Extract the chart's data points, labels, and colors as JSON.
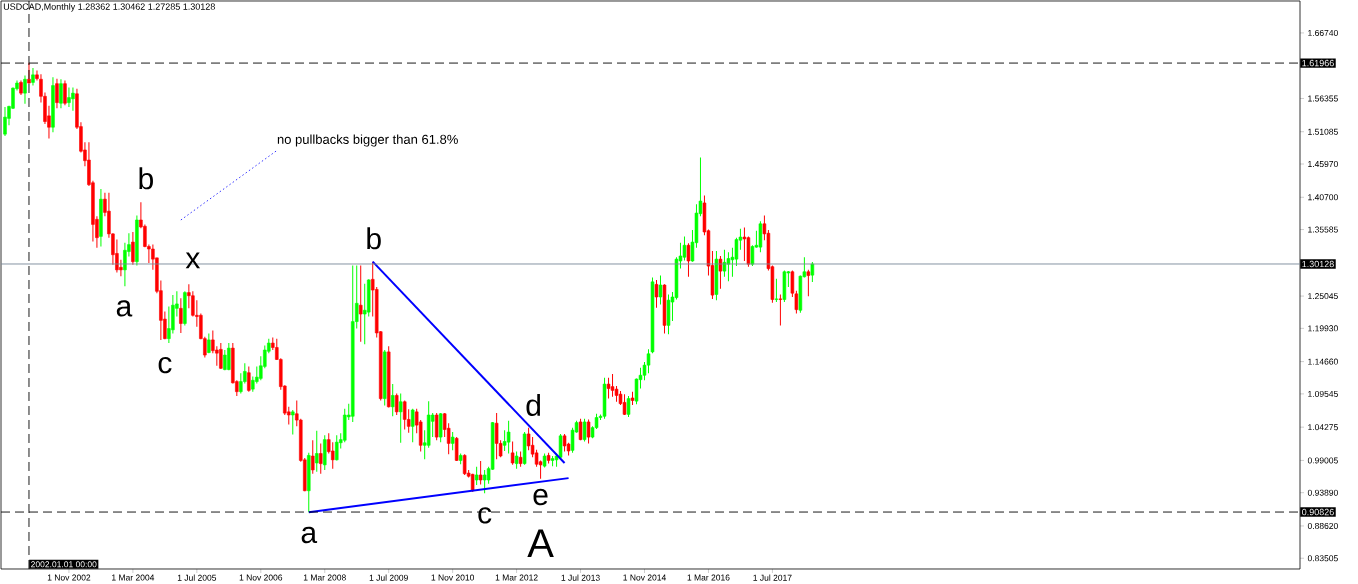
{
  "chart_data": {
    "type": "candlestick",
    "title": "USDCAD,Monthly  1.28362 1.30462 1.27285 1.30128",
    "x": [
      "2001-07",
      "2001-08",
      "2001-09",
      "2001-10",
      "2001-11",
      "2001-12",
      "2002-01",
      "2002-02",
      "2002-03",
      "2002-04",
      "2002-05",
      "2002-06",
      "2002-07",
      "2002-08",
      "2002-09",
      "2002-10",
      "2002-11",
      "2002-12",
      "2003-01",
      "2003-02",
      "2003-03",
      "2003-04",
      "2003-05",
      "2003-06",
      "2003-07",
      "2003-08",
      "2003-09",
      "2003-10",
      "2003-11",
      "2003-12",
      "2004-01",
      "2004-02",
      "2004-03",
      "2004-04",
      "2004-05",
      "2004-06",
      "2004-07",
      "2004-08",
      "2004-09",
      "2004-10",
      "2004-11",
      "2004-12",
      "2005-01",
      "2005-02",
      "2005-03",
      "2005-04",
      "2005-05",
      "2005-06",
      "2005-07",
      "2005-08",
      "2005-09",
      "2005-10",
      "2005-11",
      "2005-12",
      "2006-01",
      "2006-02",
      "2006-03",
      "2006-04",
      "2006-05",
      "2006-06",
      "2006-07",
      "2006-08",
      "2006-09",
      "2006-10",
      "2006-11",
      "2006-12",
      "2007-01",
      "2007-02",
      "2007-03",
      "2007-04",
      "2007-05",
      "2007-06",
      "2007-07",
      "2007-08",
      "2007-09",
      "2007-10",
      "2007-11",
      "2007-12",
      "2008-01",
      "2008-02",
      "2008-03",
      "2008-04",
      "2008-05",
      "2008-06",
      "2008-07",
      "2008-08",
      "2008-09",
      "2008-10",
      "2008-11",
      "2008-12",
      "2009-01",
      "2009-02",
      "2009-03",
      "2009-04",
      "2009-05",
      "2009-06",
      "2009-07",
      "2009-08",
      "2009-09",
      "2009-10",
      "2009-11",
      "2009-12",
      "2010-01",
      "2010-02",
      "2010-03",
      "2010-04",
      "2010-05",
      "2010-06",
      "2010-07",
      "2010-08",
      "2010-09",
      "2010-10",
      "2010-11",
      "2010-12",
      "2011-01",
      "2011-02",
      "2011-03",
      "2011-04",
      "2011-05",
      "2011-06",
      "2011-07",
      "2011-08",
      "2011-09",
      "2011-10",
      "2011-11",
      "2011-12",
      "2012-01",
      "2012-02",
      "2012-03",
      "2012-04",
      "2012-05",
      "2012-06",
      "2012-07",
      "2012-08",
      "2012-09",
      "2012-10",
      "2012-11",
      "2012-12",
      "2013-01",
      "2013-02",
      "2013-03",
      "2013-04",
      "2013-05",
      "2013-06",
      "2013-07",
      "2013-08",
      "2013-09",
      "2013-10",
      "2013-11",
      "2013-12",
      "2014-01",
      "2014-02",
      "2014-03",
      "2014-04",
      "2014-05",
      "2014-06",
      "2014-07",
      "2014-08",
      "2014-09",
      "2014-10",
      "2014-11",
      "2014-12",
      "2015-01",
      "2015-02",
      "2015-03",
      "2015-04",
      "2015-05",
      "2015-06",
      "2015-07",
      "2015-08",
      "2015-09",
      "2015-10",
      "2015-11",
      "2015-12",
      "2016-01",
      "2016-02",
      "2016-03",
      "2016-04",
      "2016-05",
      "2016-06",
      "2016-07",
      "2016-08",
      "2016-09",
      "2016-10",
      "2016-11",
      "2016-12",
      "2017-01",
      "2017-02",
      "2017-03",
      "2017-04",
      "2017-05",
      "2017-06",
      "2017-07",
      "2017-08",
      "2017-09",
      "2017-10",
      "2017-11",
      "2017-12",
      "2018-01",
      "2018-02",
      "2018-03",
      "2018-04",
      "2018-05"
    ],
    "ohlc": [
      [
        1.507,
        1.55,
        1.504,
        1.534
      ],
      [
        1.532,
        1.552,
        1.521,
        1.551
      ],
      [
        1.548,
        1.581,
        1.547,
        1.58
      ],
      [
        1.579,
        1.592,
        1.576,
        1.588
      ],
      [
        1.589,
        1.592,
        1.569,
        1.572
      ],
      [
        1.572,
        1.6,
        1.555,
        1.594
      ],
      [
        1.594,
        1.62,
        1.587,
        1.588
      ],
      [
        1.589,
        1.612,
        1.584,
        1.601
      ],
      [
        1.601,
        1.608,
        1.592,
        1.595
      ],
      [
        1.594,
        1.602,
        1.557,
        1.567
      ],
      [
        1.567,
        1.573,
        1.523,
        1.527
      ],
      [
        1.536,
        1.552,
        1.5,
        1.518
      ],
      [
        1.518,
        1.597,
        1.51,
        1.584
      ],
      [
        1.587,
        1.595,
        1.548,
        1.557
      ],
      [
        1.556,
        1.594,
        1.548,
        1.587
      ],
      [
        1.587,
        1.592,
        1.553,
        1.556
      ],
      [
        1.557,
        1.581,
        1.55,
        1.565
      ],
      [
        1.563,
        1.581,
        1.544,
        1.572
      ],
      [
        1.571,
        1.579,
        1.515,
        1.518
      ],
      [
        1.519,
        1.526,
        1.478,
        1.48
      ],
      [
        1.482,
        1.494,
        1.456,
        1.465
      ],
      [
        1.466,
        1.494,
        1.425,
        1.427
      ],
      [
        1.43,
        1.433,
        1.337,
        1.364
      ],
      [
        1.372,
        1.377,
        1.327,
        1.343
      ],
      [
        1.345,
        1.42,
        1.329,
        1.404
      ],
      [
        1.404,
        1.414,
        1.377,
        1.383
      ],
      [
        1.385,
        1.414,
        1.343,
        1.349
      ],
      [
        1.349,
        1.35,
        1.3,
        1.316
      ],
      [
        1.318,
        1.34,
        1.288,
        1.292
      ],
      [
        1.296,
        1.308,
        1.282,
        1.292
      ],
      [
        1.292,
        1.335,
        1.266,
        1.323
      ],
      [
        1.321,
        1.35,
        1.313,
        1.332
      ],
      [
        1.336,
        1.352,
        1.3,
        1.305
      ],
      [
        1.305,
        1.378,
        1.299,
        1.371
      ],
      [
        1.371,
        1.399,
        1.358,
        1.36
      ],
      [
        1.361,
        1.364,
        1.328,
        1.329
      ],
      [
        1.329,
        1.332,
        1.303,
        1.325
      ],
      [
        1.325,
        1.332,
        1.292,
        1.309
      ],
      [
        1.311,
        1.311,
        1.255,
        1.258
      ],
      [
        1.259,
        1.275,
        1.181,
        1.212
      ],
      [
        1.214,
        1.226,
        1.182,
        1.183
      ],
      [
        1.183,
        1.234,
        1.176,
        1.199
      ],
      [
        1.197,
        1.252,
        1.191,
        1.236
      ],
      [
        1.231,
        1.258,
        1.218,
        1.238
      ],
      [
        1.231,
        1.247,
        1.192,
        1.207
      ],
      [
        1.207,
        1.258,
        1.204,
        1.256
      ],
      [
        1.256,
        1.269,
        1.231,
        1.251
      ],
      [
        1.251,
        1.258,
        1.218,
        1.22
      ],
      [
        1.22,
        1.244,
        1.202,
        1.218
      ],
      [
        1.22,
        1.223,
        1.182,
        1.183
      ],
      [
        1.183,
        1.186,
        1.153,
        1.157
      ],
      [
        1.161,
        1.191,
        1.16,
        1.181
      ],
      [
        1.181,
        1.196,
        1.16,
        1.164
      ],
      [
        1.165,
        1.171,
        1.14,
        1.16
      ],
      [
        1.166,
        1.176,
        1.135,
        1.136
      ],
      [
        1.134,
        1.165,
        1.133,
        1.157
      ],
      [
        1.134,
        1.176,
        1.133,
        1.168
      ],
      [
        1.168,
        1.176,
        1.112,
        1.113
      ],
      [
        1.115,
        1.117,
        1.092,
        1.099
      ],
      [
        1.099,
        1.128,
        1.096,
        1.115
      ],
      [
        1.115,
        1.144,
        1.112,
        1.131
      ],
      [
        1.129,
        1.139,
        1.099,
        1.101
      ],
      [
        1.103,
        1.123,
        1.099,
        1.117
      ],
      [
        1.115,
        1.139,
        1.112,
        1.122
      ],
      [
        1.12,
        1.155,
        1.117,
        1.14
      ],
      [
        1.139,
        1.172,
        1.136,
        1.165
      ],
      [
        1.163,
        1.183,
        1.16,
        1.176
      ],
      [
        1.176,
        1.185,
        1.165,
        1.169
      ],
      [
        1.169,
        1.183,
        1.149,
        1.15
      ],
      [
        1.15,
        1.152,
        1.102,
        1.107
      ],
      [
        1.108,
        1.109,
        1.062,
        1.065
      ],
      [
        1.067,
        1.075,
        1.047,
        1.062
      ],
      [
        1.062,
        1.07,
        1.031,
        1.067
      ],
      [
        1.064,
        1.085,
        1.044,
        1.054
      ],
      [
        1.054,
        1.056,
        0.988,
        0.99
      ],
      [
        0.991,
        0.994,
        0.941,
        0.942
      ],
      [
        0.942,
        1.002,
        0.908,
        0.998
      ],
      [
        0.997,
        1.022,
        0.969,
        0.975
      ],
      [
        0.986,
        1.037,
        0.972,
        1.001
      ],
      [
        1.001,
        1.017,
        0.969,
        0.985
      ],
      [
        0.983,
        1.03,
        0.975,
        1.023
      ],
      [
        1.023,
        1.033,
        1.001,
        1.004
      ],
      [
        1.005,
        1.019,
        0.977,
        0.991
      ],
      [
        0.991,
        1.03,
        0.99,
        1.019
      ],
      [
        1.018,
        1.033,
        1.009,
        1.023
      ],
      [
        1.022,
        1.072,
        1.019,
        1.062
      ],
      [
        1.059,
        1.08,
        1.054,
        1.062
      ],
      [
        1.06,
        1.299,
        1.051,
        1.21
      ],
      [
        1.21,
        1.299,
        1.199,
        1.239
      ],
      [
        1.236,
        1.299,
        1.178,
        1.222
      ],
      [
        1.222,
        1.27,
        1.174,
        1.228
      ],
      [
        1.225,
        1.277,
        1.218,
        1.276
      ],
      [
        1.277,
        1.305,
        1.218,
        1.26
      ],
      [
        1.261,
        1.265,
        1.185,
        1.192
      ],
      [
        1.194,
        1.195,
        1.085,
        1.088
      ],
      [
        1.088,
        1.165,
        1.077,
        1.162
      ],
      [
        1.162,
        1.171,
        1.074,
        1.075
      ],
      [
        1.075,
        1.111,
        1.06,
        1.093
      ],
      [
        1.093,
        1.096,
        1.062,
        1.067
      ],
      [
        1.067,
        1.096,
        1.018,
        1.083
      ],
      [
        1.083,
        1.085,
        1.039,
        1.055
      ],
      [
        1.055,
        1.071,
        1.034,
        1.044
      ],
      [
        1.044,
        1.072,
        1.019,
        1.07
      ],
      [
        1.067,
        1.072,
        1.033,
        1.046
      ],
      [
        1.051,
        1.054,
        1.004,
        1.014
      ],
      [
        1.014,
        1.038,
        0.992,
        1.018
      ],
      [
        1.014,
        1.084,
        1.01,
        1.062
      ],
      [
        1.052,
        1.065,
        1.027,
        1.062
      ],
      [
        1.062,
        1.065,
        1.022,
        1.027
      ],
      [
        1.027,
        1.065,
        1.019,
        1.064
      ],
      [
        1.064,
        1.065,
        1.027,
        1.039
      ],
      [
        1.041,
        1.049,
        1.0,
        1.017
      ],
      [
        1.017,
        1.035,
        1.006,
        1.027
      ],
      [
        1.025,
        1.027,
        0.989,
        0.99
      ],
      [
        0.99,
        1.001,
        0.984,
        0.998
      ],
      [
        0.998,
        1.0,
        0.967,
        0.969
      ],
      [
        0.97,
        0.975,
        0.963,
        0.965
      ],
      [
        0.968,
        0.969,
        0.94,
        0.942
      ],
      [
        0.959,
        0.98,
        0.951,
        0.967
      ],
      [
        0.967,
        0.989,
        0.952,
        0.959
      ],
      [
        0.959,
        0.975,
        0.938,
        0.967
      ],
      [
        0.959,
        0.98,
        0.953,
        0.977
      ],
      [
        0.976,
        1.051,
        0.975,
        1.05
      ],
      [
        1.049,
        1.065,
        0.992,
        1.017
      ],
      [
        1.017,
        1.022,
        0.995,
        0.997
      ],
      [
        1.014,
        1.038,
        1.005,
        1.02
      ],
      [
        1.019,
        1.053,
        1.001,
        1.035
      ],
      [
        1.002,
        1.02,
        0.983,
        0.986
      ],
      [
        0.985,
        1.004,
        0.977,
        0.997
      ],
      [
        0.995,
        1.004,
        0.98,
        0.985
      ],
      [
        0.985,
        1.035,
        0.983,
        1.032
      ],
      [
        1.032,
        1.042,
        1.006,
        1.013
      ],
      [
        1.014,
        1.027,
        0.995,
        1.0
      ],
      [
        1.002,
        1.007,
        0.98,
        0.984
      ],
      [
        0.988,
        0.99,
        0.961,
        0.983
      ],
      [
        0.981,
        1.001,
        0.979,
        0.997
      ],
      [
        0.998,
        1.002,
        0.985,
        0.99
      ],
      [
        0.99,
        0.997,
        0.981,
        0.993
      ],
      [
        0.991,
        1.001,
        0.98,
        0.997
      ],
      [
        0.995,
        1.032,
        0.993,
        1.029
      ],
      [
        1.029,
        1.032,
        1.004,
        1.013
      ],
      [
        1.016,
        1.018,
        0.998,
        1.005
      ],
      [
        1.006,
        1.042,
        1.002,
        1.038
      ],
      [
        1.035,
        1.053,
        1.034,
        1.05
      ],
      [
        1.051,
        1.056,
        1.022,
        1.023
      ],
      [
        1.023,
        1.056,
        1.02,
        1.051
      ],
      [
        1.051,
        1.055,
        1.017,
        1.027
      ],
      [
        1.027,
        1.044,
        1.025,
        1.042
      ],
      [
        1.042,
        1.064,
        1.04,
        1.058
      ],
      [
        1.058,
        1.063,
        1.054,
        1.06
      ],
      [
        1.06,
        1.121,
        1.056,
        1.111
      ],
      [
        1.111,
        1.121,
        1.088,
        1.104
      ],
      [
        1.107,
        1.127,
        1.091,
        1.101
      ],
      [
        1.103,
        1.108,
        1.083,
        1.093
      ],
      [
        1.095,
        1.1,
        1.078,
        1.08
      ],
      [
        1.082,
        1.095,
        1.062,
        1.063
      ],
      [
        1.063,
        1.092,
        1.059,
        1.088
      ],
      [
        1.089,
        1.099,
        1.078,
        1.085
      ],
      [
        1.084,
        1.12,
        1.079,
        1.119
      ],
      [
        1.118,
        1.137,
        1.104,
        1.125
      ],
      [
        1.125,
        1.146,
        1.117,
        1.141
      ],
      [
        1.141,
        1.166,
        1.128,
        1.159
      ],
      [
        1.162,
        1.28,
        1.16,
        1.273
      ],
      [
        1.269,
        1.276,
        1.232,
        1.249
      ],
      [
        1.249,
        1.283,
        1.237,
        1.268
      ],
      [
        1.268,
        1.269,
        1.191,
        1.204
      ],
      [
        1.204,
        1.253,
        1.19,
        1.244
      ],
      [
        1.241,
        1.257,
        1.211,
        1.249
      ],
      [
        1.248,
        1.312,
        1.245,
        1.309
      ],
      [
        1.306,
        1.335,
        1.294,
        1.314
      ],
      [
        1.312,
        1.345,
        1.307,
        1.331
      ],
      [
        1.331,
        1.334,
        1.281,
        1.306
      ],
      [
        1.306,
        1.355,
        1.305,
        1.336
      ],
      [
        1.335,
        1.396,
        1.327,
        1.382
      ],
      [
        1.381,
        1.47,
        1.377,
        1.401
      ],
      [
        1.398,
        1.41,
        1.347,
        1.352
      ],
      [
        1.354,
        1.356,
        1.283,
        1.298
      ],
      [
        1.299,
        1.322,
        1.246,
        1.252
      ],
      [
        1.253,
        1.322,
        1.244,
        1.309
      ],
      [
        1.309,
        1.314,
        1.262,
        1.29
      ],
      [
        1.29,
        1.324,
        1.281,
        1.304
      ],
      [
        1.301,
        1.32,
        1.274,
        1.31
      ],
      [
        1.308,
        1.327,
        1.281,
        1.312
      ],
      [
        1.309,
        1.343,
        1.298,
        1.34
      ],
      [
        1.339,
        1.357,
        1.324,
        1.344
      ],
      [
        1.344,
        1.359,
        1.306,
        1.341
      ],
      [
        1.343,
        1.345,
        1.297,
        1.301
      ],
      [
        1.301,
        1.331,
        1.298,
        1.329
      ],
      [
        1.328,
        1.354,
        1.327,
        1.331
      ],
      [
        1.328,
        1.369,
        1.32,
        1.365
      ],
      [
        1.365,
        1.378,
        1.339,
        1.349
      ],
      [
        1.35,
        1.355,
        1.291,
        1.294
      ],
      [
        1.297,
        1.299,
        1.24,
        1.245
      ],
      [
        1.245,
        1.278,
        1.241,
        1.246
      ],
      [
        1.246,
        1.253,
        1.204,
        1.245
      ],
      [
        1.245,
        1.291,
        1.241,
        1.289
      ],
      [
        1.287,
        1.29,
        1.265,
        1.289
      ],
      [
        1.289,
        1.291,
        1.249,
        1.255
      ],
      [
        1.254,
        1.259,
        1.223,
        1.229
      ],
      [
        1.228,
        1.283,
        1.224,
        1.282
      ],
      [
        1.281,
        1.312,
        1.28,
        1.289
      ],
      [
        1.289,
        1.292,
        1.25,
        1.283
      ],
      [
        1.28362,
        1.30462,
        1.27285,
        1.30128
      ]
    ],
    "colors": [
      "#00ff00",
      "#00ff00",
      "#00ff00",
      "#00ff00",
      "#ff0000",
      "#00ff00",
      "#ff0000",
      "#00ff00",
      "#ff0000",
      "#ff0000",
      "#ff0000",
      "#ff0000",
      "#00ff00",
      "#ff0000",
      "#00ff00",
      "#ff0000",
      "#00ff00",
      "#00ff00",
      "#ff0000",
      "#ff0000",
      "#ff0000",
      "#ff0000",
      "#ff0000",
      "#ff0000",
      "#00ff00",
      "#ff0000",
      "#ff0000",
      "#ff0000",
      "#ff0000",
      "#ff0000",
      "#00ff00",
      "#00ff00",
      "#ff0000",
      "#00ff00",
      "#ff0000",
      "#ff0000",
      "#ff0000",
      "#ff0000",
      "#ff0000",
      "#ff0000",
      "#ff0000",
      "#00ff00",
      "#00ff00",
      "#00ff00",
      "#ff0000",
      "#00ff00",
      "#ff0000",
      "#ff0000",
      "#ff0000",
      "#ff0000",
      "#ff0000",
      "#00ff00",
      "#ff0000",
      "#ff0000",
      "#ff0000",
      "#00ff00",
      "#00ff00",
      "#ff0000",
      "#ff0000",
      "#00ff00",
      "#00ff00",
      "#ff0000",
      "#00ff00",
      "#00ff00",
      "#00ff00",
      "#00ff00",
      "#00ff00",
      "#ff0000",
      "#ff0000",
      "#ff0000",
      "#ff0000",
      "#ff0000",
      "#00ff00",
      "#ff0000",
      "#ff0000",
      "#ff0000",
      "#00ff00",
      "#ff0000",
      "#00ff00",
      "#ff0000",
      "#00ff00",
      "#ff0000",
      "#ff0000",
      "#00ff00",
      "#00ff00",
      "#00ff00",
      "#00ff00",
      "#00ff00",
      "#00ff00",
      "#ff0000",
      "#00ff00",
      "#00ff00",
      "#ff0000",
      "#ff0000",
      "#ff0000",
      "#00ff00",
      "#ff0000",
      "#00ff00",
      "#ff0000",
      "#00ff00",
      "#ff0000",
      "#ff0000",
      "#00ff00",
      "#ff0000",
      "#ff0000",
      "#00ff00",
      "#00ff00",
      "#00ff00",
      "#ff0000",
      "#00ff00",
      "#ff0000",
      "#ff0000",
      "#00ff00",
      "#ff0000",
      "#00ff00",
      "#ff0000",
      "#ff0000",
      "#ff0000",
      "#00ff00",
      "#ff0000",
      "#00ff00",
      "#00ff00",
      "#00ff00",
      "#ff0000",
      "#ff0000",
      "#00ff00",
      "#00ff00",
      "#ff0000",
      "#00ff00",
      "#ff0000",
      "#00ff00",
      "#ff0000",
      "#ff0000",
      "#ff0000",
      "#ff0000",
      "#00ff00",
      "#ff0000",
      "#00ff00",
      "#00ff00",
      "#00ff00",
      "#ff0000",
      "#ff0000",
      "#00ff00",
      "#00ff00",
      "#ff0000",
      "#00ff00",
      "#ff0000",
      "#00ff00",
      "#00ff00",
      "#00ff00",
      "#00ff00",
      "#ff0000",
      "#ff0000",
      "#ff0000",
      "#ff0000",
      "#ff0000",
      "#00ff00",
      "#ff0000",
      "#00ff00",
      "#00ff00",
      "#00ff00",
      "#00ff00",
      "#00ff00",
      "#ff0000",
      "#00ff00",
      "#ff0000",
      "#00ff00",
      "#00ff00",
      "#00ff00",
      "#00ff00",
      "#00ff00",
      "#ff0000",
      "#00ff00",
      "#00ff00",
      "#00ff00",
      "#ff0000",
      "#ff0000",
      "#ff0000",
      "#00ff00",
      "#ff0000",
      "#00ff00",
      "#00ff00",
      "#00ff00",
      "#00ff00",
      "#00ff00",
      "#ff0000",
      "#ff0000",
      "#00ff00",
      "#00ff00",
      "#00ff00",
      "#ff0000",
      "#ff0000",
      "#ff0000",
      "#00ff00",
      "#ff0000",
      "#00ff00",
      "#00ff00",
      "#ff0000",
      "#ff0000",
      "#00ff00",
      "#00ff00",
      "#ff0000",
      "#00ff00"
    ],
    "series": [
      {
        "type": "line",
        "x": [
          "2009-03",
          "2013-03"
        ],
        "values": [
          1.305,
          0.986
        ],
        "color": "#0000ff"
      },
      {
        "type": "line",
        "x": [
          "2007-11",
          "2013-04"
        ],
        "values": [
          0.908,
          0.962
        ],
        "color": "#0000ff"
      },
      {
        "type": "line",
        "x": [
          "2005-03",
          "2007-03"
        ],
        "values": [
          1.371,
          1.481
        ],
        "color": "#0000ff",
        "line_style": "dotted"
      }
    ],
    "xlim": [
      "2001-06",
      "2028-07"
    ],
    "ylim": [
      0.818,
      1.718
    ],
    "xticks": [
      {
        "value": "2002-11",
        "label": "1 Nov 2002"
      },
      {
        "value": "2004-03",
        "label": "1 Mar 2004"
      },
      {
        "value": "2005-07",
        "label": "1 Jul 2005"
      },
      {
        "value": "2006-11",
        "label": "1 Nov 2006"
      },
      {
        "value": "2008-03",
        "label": "1 Mar 2008"
      },
      {
        "value": "2009-07",
        "label": "1 Jul 2009"
      },
      {
        "value": "2010-11",
        "label": "1 Nov 2010"
      },
      {
        "value": "2012-03",
        "label": "1 Mar 2012"
      },
      {
        "value": "2013-07",
        "label": "1 Jul 2013"
      },
      {
        "value": "2014-11",
        "label": "1 Nov 2014"
      },
      {
        "value": "2016-03",
        "label": "1 Mar 2016"
      },
      {
        "value": "2017-07",
        "label": "1 Jul 2017"
      }
    ],
    "yticks": [
      {
        "value": 1.6674,
        "label": "1.66740"
      },
      {
        "value": 1.56355,
        "label": "1.56355"
      },
      {
        "value": 1.51085,
        "label": "1.51085"
      },
      {
        "value": 1.4597,
        "label": "1.45970"
      },
      {
        "value": 1.407,
        "label": "1.40700"
      },
      {
        "value": 1.35585,
        "label": "1.35585"
      },
      {
        "value": 1.25045,
        "label": "1.25045"
      },
      {
        "value": 1.1993,
        "label": "1.19930"
      },
      {
        "value": 1.1466,
        "label": "1.14660"
      },
      {
        "value": 1.09545,
        "label": "1.09545"
      },
      {
        "value": 1.04275,
        "label": "1.04275"
      },
      {
        "value": 0.99005,
        "label": "0.99005"
      },
      {
        "value": 0.9389,
        "label": "0.93890"
      },
      {
        "value": 0.8862,
        "label": "0.88620"
      },
      {
        "value": 0.83505,
        "label": "0.83505"
      }
    ],
    "ref_lines": [
      {
        "axis": "y",
        "value": 1.61966,
        "label": "1.61966",
        "color": "#000000",
        "line_style": "dashed"
      },
      {
        "axis": "y",
        "value": 0.90826,
        "label": "0.90826",
        "color": "#000000",
        "line_style": "dashed"
      },
      {
        "axis": "y",
        "value": 1.30128,
        "label": "1.30128",
        "color": "#778899",
        "line_style": "solid"
      },
      {
        "axis": "x",
        "value": "2002-01",
        "label": "2002.01.01 00:00",
        "color": "#000000",
        "line_style": "dashed"
      }
    ],
    "annotations": [
      "b",
      "a",
      "x",
      "c",
      "b",
      "a",
      "c",
      "d",
      "e",
      "A",
      "no pullbacks bigger than 61.8%"
    ]
  }
}
